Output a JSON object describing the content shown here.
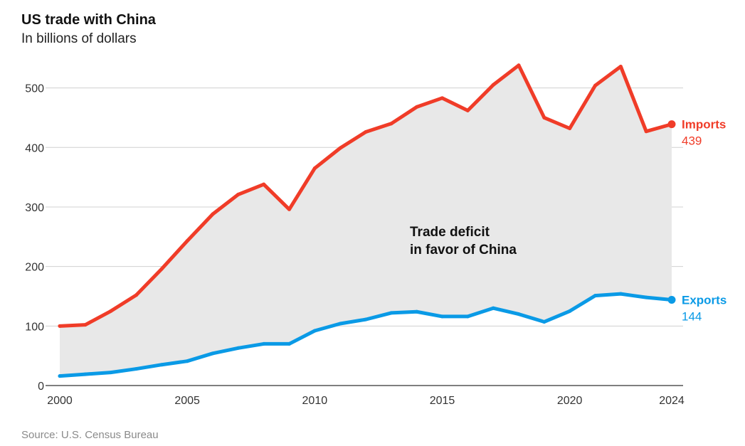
{
  "title": "US trade with China",
  "subtitle": "In billions of dollars",
  "source": "Source: U.S. Census Bureau",
  "annotation": [
    "Trade deficit",
    "in favor of China"
  ],
  "colors": {
    "imports": "#f03c28",
    "exports": "#0a9ae6",
    "area": "#e8e8e8",
    "grid": "#d0d0d0",
    "axis": "#333333"
  },
  "chart_data": {
    "type": "line",
    "x": [
      2000,
      2001,
      2002,
      2003,
      2004,
      2005,
      2006,
      2007,
      2008,
      2009,
      2010,
      2011,
      2012,
      2013,
      2014,
      2015,
      2016,
      2017,
      2018,
      2019,
      2020,
      2021,
      2022,
      2023,
      2024
    ],
    "series": [
      {
        "name": "Imports",
        "end_label": "439",
        "values": [
          100,
          102,
          125,
          152,
          196,
          243,
          288,
          321,
          338,
          296,
          365,
          399,
          426,
          440,
          468,
          483,
          462,
          505,
          538,
          450,
          432,
          504,
          536,
          427,
          439
        ]
      },
      {
        "name": "Exports",
        "end_label": "144",
        "values": [
          16,
          19,
          22,
          28,
          35,
          41,
          54,
          63,
          70,
          70,
          92,
          104,
          111,
          122,
          124,
          116,
          116,
          130,
          120,
          107,
          125,
          151,
          154,
          148,
          144
        ]
      }
    ],
    "x_ticks": [
      "2000",
      "2005",
      "2010",
      "2015",
      "2020",
      "2024"
    ],
    "y_ticks": [
      "0",
      "100",
      "200",
      "300",
      "400",
      "500"
    ],
    "xlim": [
      2000,
      2024
    ],
    "ylim": [
      0,
      540
    ],
    "grid": true,
    "fill_between": true
  }
}
